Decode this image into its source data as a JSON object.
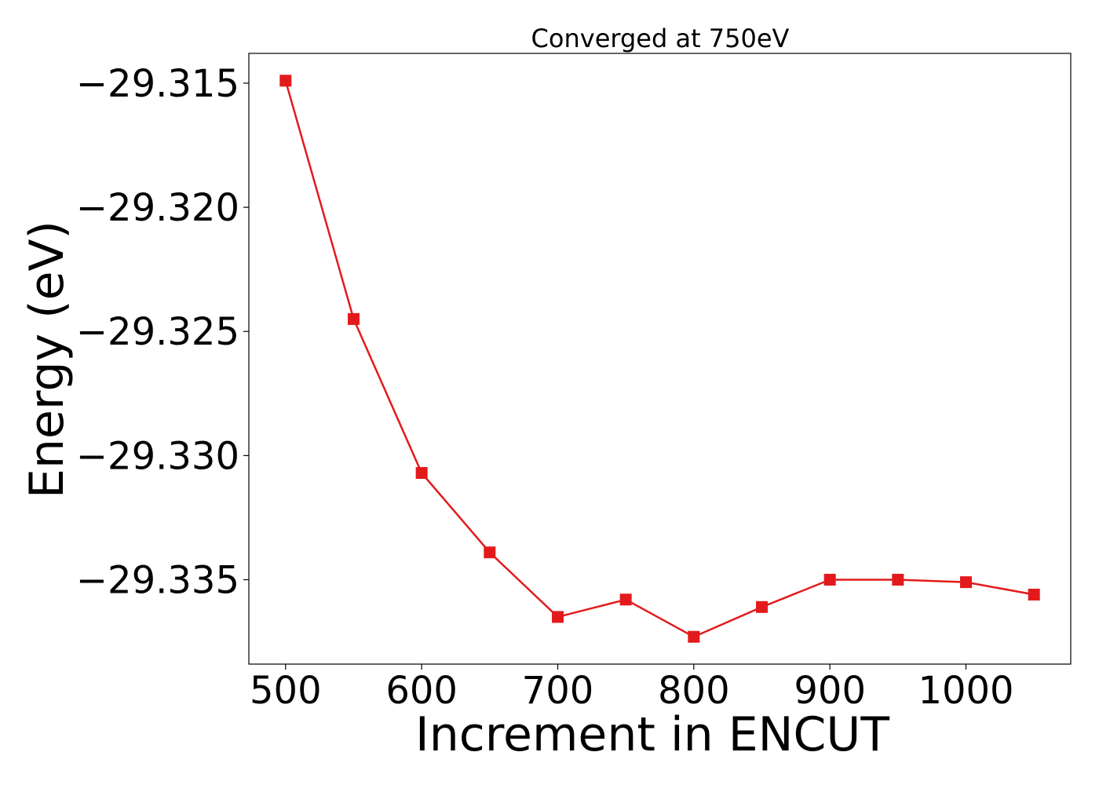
{
  "chart_data": {
    "type": "line",
    "title": "Converged at 750eV",
    "xlabel": "Increment in ENCUT",
    "ylabel": "Energy (eV)",
    "x": [
      500,
      550,
      600,
      650,
      700,
      750,
      800,
      850,
      900,
      950,
      1000,
      1050
    ],
    "series": [
      {
        "values": [
          -29.3149,
          -29.3245,
          -29.3307,
          -29.3339,
          -29.3365,
          -29.3358,
          -29.3373,
          -29.3361,
          -29.335,
          -29.335,
          -29.3351,
          -29.3356
        ],
        "color": "#e31a1c",
        "marker": "square"
      }
    ],
    "xlim": [
      473,
      1077
    ],
    "ylim": [
      -29.3384,
      -29.3138
    ],
    "xticks": [
      500,
      600,
      700,
      800,
      900,
      1000
    ],
    "xtick_labels": [
      "500",
      "600",
      "700",
      "800",
      "900",
      "1000"
    ],
    "yticks": [
      -29.315,
      -29.32,
      -29.325,
      -29.33,
      -29.335
    ],
    "ytick_labels": [
      "−29.315",
      "−29.320",
      "−29.325",
      "−29.330",
      "−29.335"
    ],
    "grid": false,
    "legend": false
  }
}
